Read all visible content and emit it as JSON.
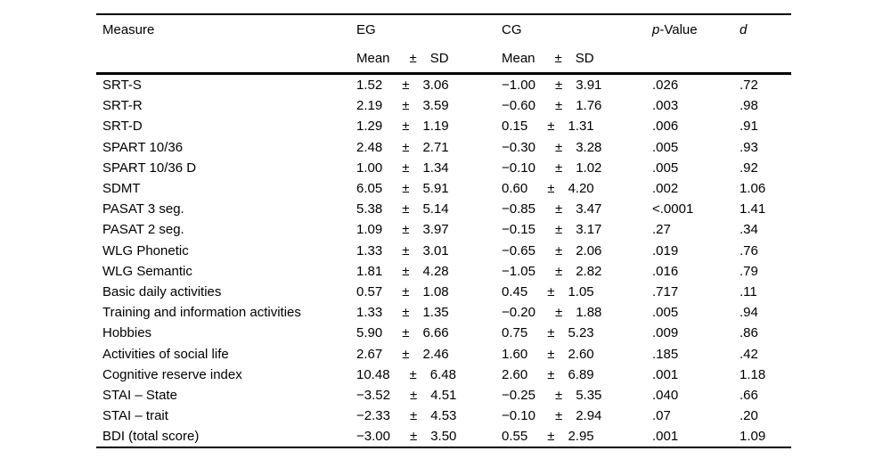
{
  "table": {
    "headers": {
      "measure": "Measure",
      "eg": "EG",
      "cg": "CG",
      "p_italic": "p",
      "p_rest": "-Value",
      "d": "d",
      "mean": "Mean",
      "pm": "±",
      "sd": "SD"
    },
    "rows": [
      {
        "measure": "SRT-S",
        "eg_mean": "1.52",
        "eg_sd": "3.06",
        "cg_mean": "−1.00",
        "cg_sd": "3.91",
        "p": ".026",
        "d": ".72"
      },
      {
        "measure": "SRT-R",
        "eg_mean": "2.19",
        "eg_sd": "3.59",
        "cg_mean": "−0.60",
        "cg_sd": "1.76",
        "p": ".003",
        "d": ".98"
      },
      {
        "measure": "SRT-D",
        "eg_mean": "1.29",
        "eg_sd": "1.19",
        "cg_mean": "0.15",
        "cg_sd": "1.31",
        "p": ".006",
        "d": ".91"
      },
      {
        "measure": "SPART 10/36",
        "eg_mean": "2.48",
        "eg_sd": "2.71",
        "cg_mean": "−0.30",
        "cg_sd": "3.28",
        "p": ".005",
        "d": ".93"
      },
      {
        "measure": "SPART 10/36 D",
        "eg_mean": "1.00",
        "eg_sd": "1.34",
        "cg_mean": "−0.10",
        "cg_sd": "1.02",
        "p": ".005",
        "d": ".92"
      },
      {
        "measure": "SDMT",
        "eg_mean": "6.05",
        "eg_sd": "5.91",
        "cg_mean": "0.60",
        "cg_sd": "4.20",
        "p": ".002",
        "d": "1.06"
      },
      {
        "measure": "PASAT 3 seg.",
        "eg_mean": "5.38",
        "eg_sd": "5.14",
        "cg_mean": "−0.85",
        "cg_sd": "3.47",
        "p": "<.0001",
        "d": "1.41"
      },
      {
        "measure": "PASAT 2 seg.",
        "eg_mean": "1.09",
        "eg_sd": "3.97",
        "cg_mean": "−0.15",
        "cg_sd": "3.17",
        "p": ".27",
        "d": ".34"
      },
      {
        "measure": "WLG Phonetic",
        "eg_mean": "1.33",
        "eg_sd": "3.01",
        "cg_mean": "−0.65",
        "cg_sd": "2.06",
        "p": ".019",
        "d": ".76"
      },
      {
        "measure": "WLG Semantic",
        "eg_mean": "1.81",
        "eg_sd": "4.28",
        "cg_mean": "−1.05",
        "cg_sd": "2.82",
        "p": ".016",
        "d": ".79"
      },
      {
        "measure": "Basic daily activities",
        "eg_mean": "0.57",
        "eg_sd": "1.08",
        "cg_mean": "0.45",
        "cg_sd": "1.05",
        "p": ".717",
        "d": ".11"
      },
      {
        "measure": "Training and information activities",
        "eg_mean": "1.33",
        "eg_sd": "1.35",
        "cg_mean": "−0.20",
        "cg_sd": "1.88",
        "p": ".005",
        "d": ".94"
      },
      {
        "measure": "Hobbies",
        "eg_mean": "5.90",
        "eg_sd": "6.66",
        "cg_mean": "0.75",
        "cg_sd": "5.23",
        "p": ".009",
        "d": ".86"
      },
      {
        "measure": "Activities of social life",
        "eg_mean": "2.67",
        "eg_sd": "2.46",
        "cg_mean": "1.60",
        "cg_sd": "2.60",
        "p": ".185",
        "d": ".42"
      },
      {
        "measure": "Cognitive reserve index",
        "eg_mean": "10.48",
        "eg_sd": "6.48",
        "cg_mean": "2.60",
        "cg_sd": "6.89",
        "p": ".001",
        "d": "1.18"
      },
      {
        "measure": "STAI – State",
        "eg_mean": "−3.52",
        "eg_sd": "4.51",
        "cg_mean": "−0.25",
        "cg_sd": "5.35",
        "p": ".040",
        "d": ".66"
      },
      {
        "measure": "STAI – trait",
        "eg_mean": "−2.33",
        "eg_sd": "4.53",
        "cg_mean": "−0.10",
        "cg_sd": "2.94",
        "p": ".07",
        "d": ".20"
      },
      {
        "measure": "BDI (total score)",
        "eg_mean": "−3.00",
        "eg_sd": "3.50",
        "cg_mean": "0.55",
        "cg_sd": "2.95",
        "p": ".001",
        "d": "1.09"
      }
    ]
  }
}
